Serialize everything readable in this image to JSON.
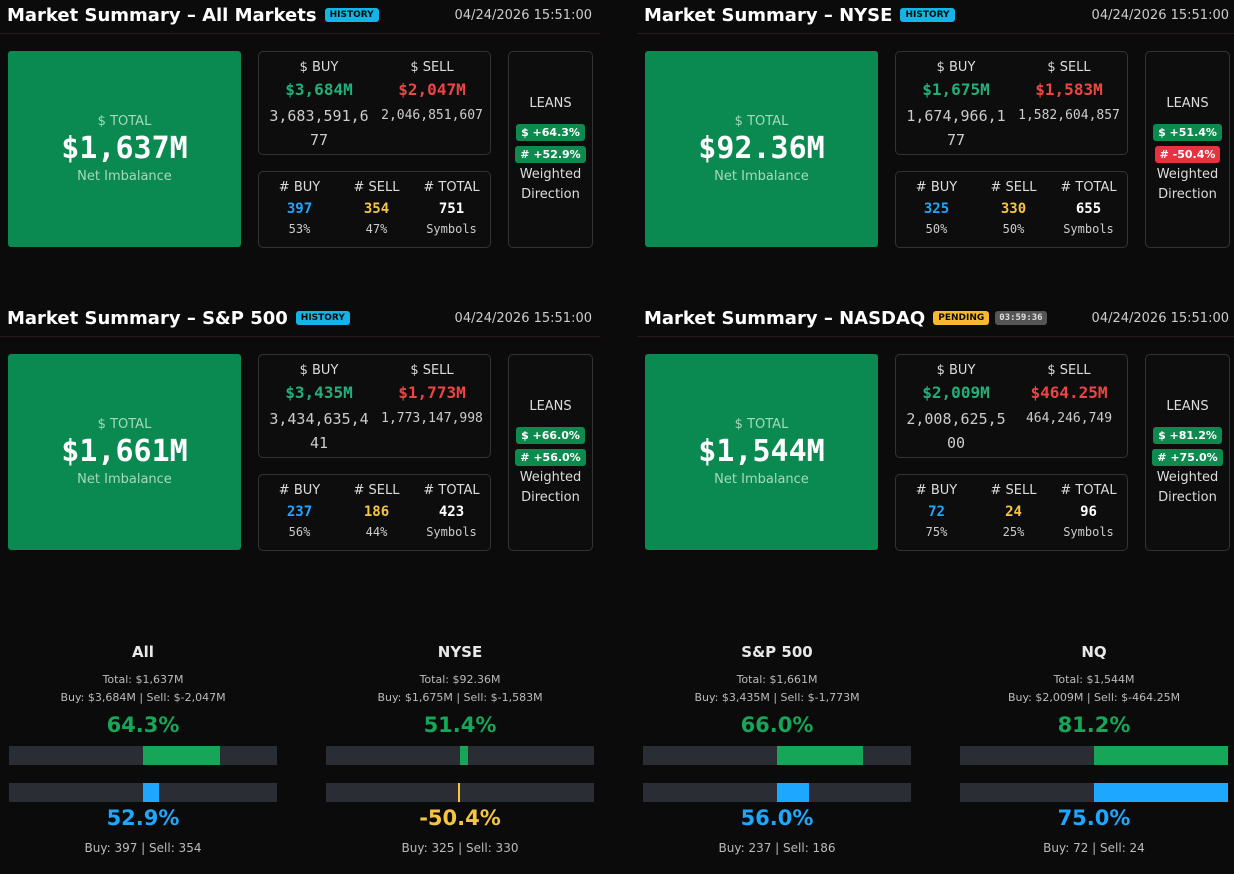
{
  "panels": [
    {
      "title": "Market Summary – All Markets",
      "badge": {
        "text": "HISTORY",
        "color": "#12b5e5"
      },
      "timestamp": "04/24/2026 15:51:00",
      "total": {
        "label": "$ TOTAL",
        "value": "$1,637M",
        "caption": "Net Imbalance"
      },
      "dollars": {
        "buy_label": "$ BUY",
        "sell_label": "$ SELL",
        "buy": "$3,684M",
        "sell": "$2,047M",
        "buy_full": "3,683,591,677",
        "sell_full": "2,046,851,607"
      },
      "counts": {
        "buy_label": "# BUY",
        "sell_label": "# SELL",
        "total_label": "# TOTAL",
        "buy": 397,
        "sell": 354,
        "total": 751,
        "buy_pct": "53%",
        "sell_pct": "47%",
        "total_caption": "Symbols"
      },
      "leans": {
        "label": "LEANS",
        "dollar": {
          "text": "$ +64.3%",
          "color": "#0f8a4f"
        },
        "count": {
          "text": "# +52.9%",
          "color": "#0f8a4f"
        },
        "caption": "Weighted Direction"
      }
    },
    {
      "title": "Market Summary – NYSE",
      "badge": {
        "text": "HISTORY",
        "color": "#12b5e5"
      },
      "timestamp": "04/24/2026 15:51:00",
      "total": {
        "label": "$ TOTAL",
        "value": "$92.36M",
        "caption": "Net Imbalance"
      },
      "dollars": {
        "buy_label": "$ BUY",
        "sell_label": "$ SELL",
        "buy": "$1,675M",
        "sell": "$1,583M",
        "buy_full": "1,674,966,177",
        "sell_full": "1,582,604,857"
      },
      "counts": {
        "buy_label": "# BUY",
        "sell_label": "# SELL",
        "total_label": "# TOTAL",
        "buy": 325,
        "sell": 330,
        "total": 655,
        "buy_pct": "50%",
        "sell_pct": "50%",
        "total_caption": "Symbols"
      },
      "leans": {
        "label": "LEANS",
        "dollar": {
          "text": "$ +51.4%",
          "color": "#0f8a4f"
        },
        "count": {
          "text": "# -50.4%",
          "color": "#e5333f"
        },
        "caption": "Weighted Direction"
      }
    },
    {
      "title": "Market Summary – S&P 500",
      "badge": {
        "text": "HISTORY",
        "color": "#12b5e5"
      },
      "timestamp": "04/24/2026 15:51:00",
      "total": {
        "label": "$ TOTAL",
        "value": "$1,661M",
        "caption": "Net Imbalance"
      },
      "dollars": {
        "buy_label": "$ BUY",
        "sell_label": "$ SELL",
        "buy": "$3,435M",
        "sell": "$1,773M",
        "buy_full": "3,434,635,441",
        "sell_full": "1,773,147,998"
      },
      "counts": {
        "buy_label": "# BUY",
        "sell_label": "# SELL",
        "total_label": "# TOTAL",
        "buy": 237,
        "sell": 186,
        "total": 423,
        "buy_pct": "56%",
        "sell_pct": "44%",
        "total_caption": "Symbols"
      },
      "leans": {
        "label": "LEANS",
        "dollar": {
          "text": "$ +66.0%",
          "color": "#0f8a4f"
        },
        "count": {
          "text": "# +56.0%",
          "color": "#0f8a4f"
        },
        "caption": "Weighted Direction"
      }
    },
    {
      "title": "Market Summary – NASDAQ",
      "badge": {
        "text": "PENDING",
        "color": "#f5b82e"
      },
      "timer": "03:59:36",
      "timestamp": "04/24/2026 15:51:00",
      "total": {
        "label": "$ TOTAL",
        "value": "$1,544M",
        "caption": "Net Imbalance"
      },
      "dollars": {
        "buy_label": "$ BUY",
        "sell_label": "$ SELL",
        "buy": "$2,009M",
        "sell": "$464.25M",
        "buy_full": "2,008,625,500",
        "sell_full": "464,246,749"
      },
      "counts": {
        "buy_label": "# BUY",
        "sell_label": "# SELL",
        "total_label": "# TOTAL",
        "buy": 72,
        "sell": 24,
        "total": 96,
        "buy_pct": "75%",
        "sell_pct": "25%",
        "total_caption": "Symbols"
      },
      "leans": {
        "label": "LEANS",
        "dollar": {
          "text": "$ +81.2%",
          "color": "#0f8a4f"
        },
        "count": {
          "text": "# +75.0%",
          "color": "#0f8a4f"
        },
        "caption": "Weighted Direction"
      }
    }
  ],
  "gauges": [
    {
      "name": "All",
      "total": "Total: $1,637M",
      "split": "Buy: $3,684M | Sell: $-2,047M",
      "dollar_lean": {
        "value": 64.3,
        "label": "64.3%"
      },
      "count_lean": {
        "value": 52.9,
        "label": "52.9%"
      },
      "counts": "Buy: 397 | Sell: 354"
    },
    {
      "name": "NYSE",
      "total": "Total: $92.36M",
      "split": "Buy: $1,675M | Sell: $-1,583M",
      "dollar_lean": {
        "value": 51.4,
        "label": "51.4%"
      },
      "count_lean": {
        "value": -50.4,
        "label": "-50.4%"
      },
      "counts": "Buy: 325 | Sell: 330"
    },
    {
      "name": "S&P 500",
      "total": "Total: $1,661M",
      "split": "Buy: $3,435M | Sell: $-1,773M",
      "dollar_lean": {
        "value": 66.0,
        "label": "66.0%"
      },
      "count_lean": {
        "value": 56.0,
        "label": "56.0%"
      },
      "counts": "Buy: 237 | Sell: 186"
    },
    {
      "name": "NQ",
      "total": "Total: $1,544M",
      "split": "Buy: $2,009M | Sell: $-464.25M",
      "dollar_lean": {
        "value": 81.2,
        "label": "81.2%"
      },
      "count_lean": {
        "value": 75.0,
        "label": "75.0%"
      },
      "counts": "Buy: 72 | Sell: 24"
    }
  ]
}
